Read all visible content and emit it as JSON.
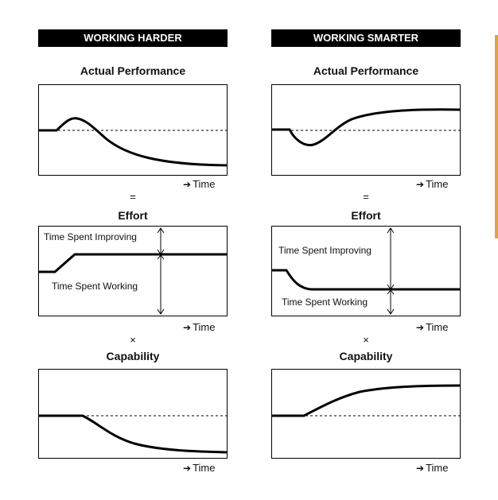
{
  "columns": {
    "left": {
      "header": "WORKING HARDER",
      "performance_title": "Actual Performance",
      "effort_title": "Effort",
      "capability_title": "Capability",
      "time_label": "Time",
      "equals": "=",
      "times": "×",
      "effort_labels": {
        "improving": "Time Spent Improving",
        "working": "Time Spent Working"
      }
    },
    "right": {
      "header": "WORKING SMARTER",
      "performance_title": "Actual Performance",
      "effort_title": "Effort",
      "capability_title": "Capability",
      "time_label": "Time",
      "equals": "=",
      "times": "×",
      "effort_labels": {
        "improving": "Time Spent Improving",
        "working": "Time Spent Working"
      }
    }
  },
  "colors": {
    "header_bg": "#000000",
    "header_text": "#ffffff",
    "accent_bar": "#e4a33a"
  }
}
